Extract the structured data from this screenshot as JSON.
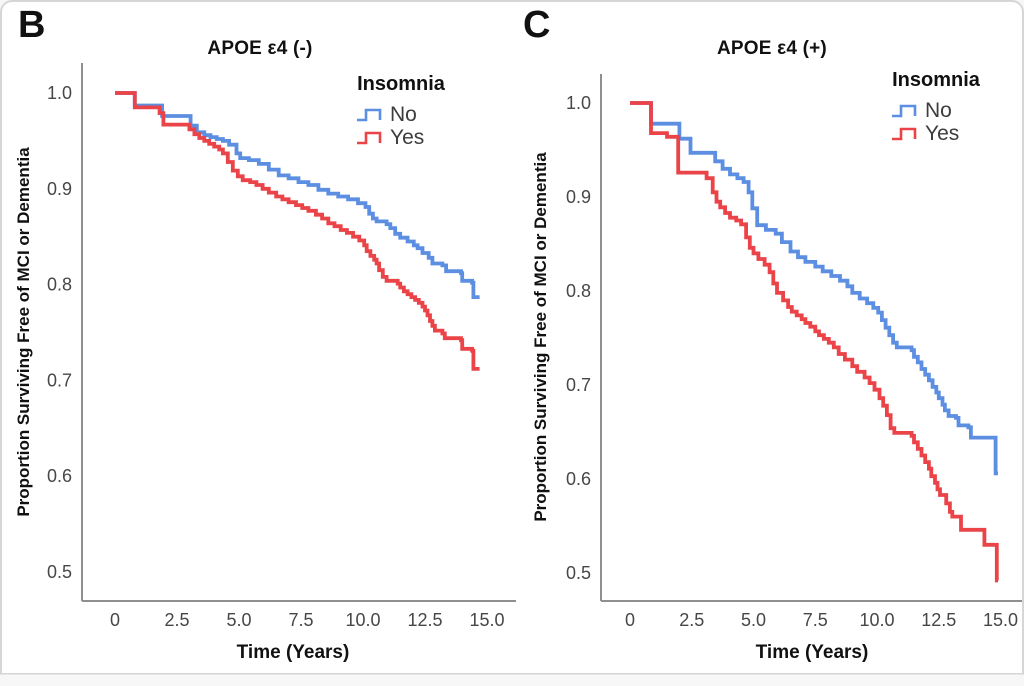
{
  "figure": {
    "bottom_strip_color": "#f7f7f8",
    "card_border_color": "#d6d6d6",
    "axis_color": "#8f8f8f",
    "tick_text_color": "#474747",
    "label_text_color": "#111111"
  },
  "chart_data": [
    {
      "panel_label": "B",
      "type": "line",
      "subtype": "kaplan-meier-step",
      "title": "APOE ε4 (-)",
      "xlabel": "Time (Years)",
      "ylabel": "Proportion Surviving Free of MCI or Dementia",
      "xlim": [
        0,
        15
      ],
      "ylim": [
        0.5,
        1.0
      ],
      "grid": false,
      "xticks": {
        "values": [
          0,
          2.5,
          5,
          7.5,
          10,
          12.5,
          15
        ],
        "labels": [
          "0",
          "2.5",
          "5.0",
          "7.5",
          "10.0",
          "12.5",
          "15.0"
        ]
      },
      "yticks": {
        "values": [
          1.0,
          0.9,
          0.8,
          0.7,
          0.6,
          0.5
        ],
        "labels": [
          "1.0",
          "0.9",
          "0.8",
          "0.7",
          "0.6",
          "0.5"
        ]
      },
      "legend": {
        "title": "Insomnia",
        "position": "top-right"
      },
      "series": [
        {
          "name": "No",
          "color": "#5c8ee2",
          "points": [
            [
              0,
              1.0
            ],
            [
              0.8,
              0.987
            ],
            [
              1.9,
              0.976
            ],
            [
              3.05,
              0.966
            ],
            [
              3.3,
              0.959
            ],
            [
              3.6,
              0.956
            ],
            [
              3.85,
              0.954
            ],
            [
              4.1,
              0.952
            ],
            [
              4.35,
              0.95
            ],
            [
              4.6,
              0.946
            ],
            [
              4.9,
              0.937
            ],
            [
              5.05,
              0.932
            ],
            [
              5.4,
              0.93
            ],
            [
              5.8,
              0.926
            ],
            [
              6.2,
              0.92
            ],
            [
              6.6,
              0.914
            ],
            [
              7.0,
              0.911
            ],
            [
              7.4,
              0.907
            ],
            [
              7.8,
              0.904
            ],
            [
              8.2,
              0.899
            ],
            [
              8.6,
              0.895
            ],
            [
              9.0,
              0.892
            ],
            [
              9.4,
              0.889
            ],
            [
              9.8,
              0.885
            ],
            [
              10.1,
              0.881
            ],
            [
              10.25,
              0.874
            ],
            [
              10.4,
              0.869
            ],
            [
              10.55,
              0.866
            ],
            [
              10.95,
              0.863
            ],
            [
              11.1,
              0.859
            ],
            [
              11.3,
              0.853
            ],
            [
              11.5,
              0.849
            ],
            [
              11.8,
              0.845
            ],
            [
              12.05,
              0.841
            ],
            [
              12.2,
              0.838
            ],
            [
              12.4,
              0.833
            ],
            [
              12.65,
              0.828
            ],
            [
              12.8,
              0.822
            ],
            [
              13.2,
              0.82
            ],
            [
              13.35,
              0.814
            ],
            [
              13.95,
              0.812
            ],
            [
              14.0,
              0.804
            ],
            [
              14.4,
              0.802
            ],
            [
              14.45,
              0.787
            ],
            [
              14.7,
              0.787
            ]
          ]
        },
        {
          "name": "Yes",
          "color": "#ea4348",
          "points": [
            [
              0,
              1.0
            ],
            [
              0.8,
              0.985
            ],
            [
              1.8,
              0.979
            ],
            [
              1.95,
              0.967
            ],
            [
              3.0,
              0.962
            ],
            [
              3.2,
              0.957
            ],
            [
              3.4,
              0.953
            ],
            [
              3.6,
              0.95
            ],
            [
              3.8,
              0.947
            ],
            [
              4.0,
              0.944
            ],
            [
              4.2,
              0.941
            ],
            [
              4.35,
              0.937
            ],
            [
              4.55,
              0.928
            ],
            [
              4.75,
              0.919
            ],
            [
              4.95,
              0.913
            ],
            [
              5.15,
              0.909
            ],
            [
              5.45,
              0.907
            ],
            [
              5.7,
              0.904
            ],
            [
              5.95,
              0.9
            ],
            [
              6.2,
              0.896
            ],
            [
              6.5,
              0.892
            ],
            [
              6.75,
              0.889
            ],
            [
              7.0,
              0.886
            ],
            [
              7.3,
              0.883
            ],
            [
              7.55,
              0.88
            ],
            [
              7.8,
              0.877
            ],
            [
              8.1,
              0.873
            ],
            [
              8.35,
              0.869
            ],
            [
              8.6,
              0.864
            ],
            [
              8.85,
              0.861
            ],
            [
              9.1,
              0.857
            ],
            [
              9.35,
              0.854
            ],
            [
              9.6,
              0.85
            ],
            [
              9.85,
              0.846
            ],
            [
              10.05,
              0.841
            ],
            [
              10.15,
              0.835
            ],
            [
              10.3,
              0.83
            ],
            [
              10.45,
              0.826
            ],
            [
              10.55,
              0.822
            ],
            [
              10.65,
              0.815
            ],
            [
              10.8,
              0.808
            ],
            [
              10.95,
              0.804
            ],
            [
              11.4,
              0.801
            ],
            [
              11.5,
              0.797
            ],
            [
              11.65,
              0.793
            ],
            [
              11.8,
              0.79
            ],
            [
              11.95,
              0.787
            ],
            [
              12.1,
              0.784
            ],
            [
              12.25,
              0.781
            ],
            [
              12.4,
              0.777
            ],
            [
              12.5,
              0.773
            ],
            [
              12.6,
              0.768
            ],
            [
              12.7,
              0.762
            ],
            [
              12.8,
              0.757
            ],
            [
              12.9,
              0.752
            ],
            [
              13.2,
              0.749
            ],
            [
              13.3,
              0.744
            ],
            [
              13.95,
              0.742
            ],
            [
              14.0,
              0.733
            ],
            [
              14.4,
              0.731
            ],
            [
              14.45,
              0.712
            ],
            [
              14.7,
              0.712
            ]
          ]
        }
      ]
    },
    {
      "panel_label": "C",
      "type": "line",
      "subtype": "kaplan-meier-step",
      "title": "APOE ε4 (+)",
      "xlabel": "Time (Years)",
      "ylabel": "Proportion Surviving Free of MCI or Dementia",
      "xlim": [
        0,
        15
      ],
      "ylim": [
        0.5,
        1.0
      ],
      "grid": false,
      "xticks": {
        "values": [
          0,
          2.5,
          5,
          7.5,
          10,
          12.5,
          15
        ],
        "labels": [
          "0",
          "2.5",
          "5.0",
          "7.5",
          "10.0",
          "12.5",
          "15.0"
        ]
      },
      "yticks": {
        "values": [
          1.0,
          0.9,
          0.8,
          0.7,
          0.6,
          0.5
        ],
        "labels": [
          "1.0",
          "0.9",
          "0.8",
          "0.7",
          "0.6",
          "0.5"
        ]
      },
      "legend": {
        "title": "Insomnia",
        "position": "top-right"
      },
      "series": [
        {
          "name": "No",
          "color": "#5c8ee2",
          "points": [
            [
              0,
              1.0
            ],
            [
              0.85,
              0.978
            ],
            [
              2.0,
              0.962
            ],
            [
              2.45,
              0.947
            ],
            [
              3.45,
              0.938
            ],
            [
              3.75,
              0.93
            ],
            [
              4.05,
              0.924
            ],
            [
              4.35,
              0.92
            ],
            [
              4.6,
              0.916
            ],
            [
              4.8,
              0.905
            ],
            [
              4.95,
              0.888
            ],
            [
              5.15,
              0.87
            ],
            [
              5.5,
              0.865
            ],
            [
              5.9,
              0.861
            ],
            [
              6.15,
              0.852
            ],
            [
              6.5,
              0.842
            ],
            [
              6.8,
              0.836
            ],
            [
              7.1,
              0.831
            ],
            [
              7.5,
              0.826
            ],
            [
              7.8,
              0.821
            ],
            [
              8.15,
              0.816
            ],
            [
              8.5,
              0.811
            ],
            [
              8.8,
              0.805
            ],
            [
              9.0,
              0.798
            ],
            [
              9.3,
              0.792
            ],
            [
              9.6,
              0.787
            ],
            [
              9.85,
              0.782
            ],
            [
              10.05,
              0.777
            ],
            [
              10.2,
              0.769
            ],
            [
              10.35,
              0.761
            ],
            [
              10.5,
              0.753
            ],
            [
              10.65,
              0.745
            ],
            [
              10.8,
              0.74
            ],
            [
              11.4,
              0.737
            ],
            [
              11.5,
              0.73
            ],
            [
              11.65,
              0.724
            ],
            [
              11.8,
              0.717
            ],
            [
              11.95,
              0.711
            ],
            [
              12.1,
              0.705
            ],
            [
              12.25,
              0.698
            ],
            [
              12.4,
              0.692
            ],
            [
              12.5,
              0.686
            ],
            [
              12.65,
              0.679
            ],
            [
              12.75,
              0.673
            ],
            [
              12.9,
              0.667
            ],
            [
              13.2,
              0.665
            ],
            [
              13.3,
              0.657
            ],
            [
              13.7,
              0.655
            ],
            [
              13.8,
              0.644
            ],
            [
              14.75,
              0.644
            ],
            [
              14.8,
              0.606
            ],
            [
              14.9,
              0.606
            ]
          ]
        },
        {
          "name": "Yes",
          "color": "#ea4348",
          "points": [
            [
              0,
              1.0
            ],
            [
              0.85,
              0.968
            ],
            [
              1.5,
              0.964
            ],
            [
              1.95,
              0.926
            ],
            [
              3.1,
              0.92
            ],
            [
              3.35,
              0.905
            ],
            [
              3.5,
              0.895
            ],
            [
              3.65,
              0.889
            ],
            [
              3.85,
              0.883
            ],
            [
              4.05,
              0.878
            ],
            [
              4.3,
              0.875
            ],
            [
              4.5,
              0.871
            ],
            [
              4.7,
              0.857
            ],
            [
              4.85,
              0.846
            ],
            [
              5.0,
              0.84
            ],
            [
              5.2,
              0.834
            ],
            [
              5.45,
              0.828
            ],
            [
              5.65,
              0.82
            ],
            [
              5.8,
              0.808
            ],
            [
              5.95,
              0.798
            ],
            [
              6.2,
              0.79
            ],
            [
              6.4,
              0.783
            ],
            [
              6.55,
              0.778
            ],
            [
              6.75,
              0.774
            ],
            [
              6.95,
              0.77
            ],
            [
              7.1,
              0.766
            ],
            [
              7.3,
              0.762
            ],
            [
              7.5,
              0.757
            ],
            [
              7.65,
              0.753
            ],
            [
              7.85,
              0.749
            ],
            [
              8.05,
              0.745
            ],
            [
              8.25,
              0.74
            ],
            [
              8.45,
              0.733
            ],
            [
              8.7,
              0.727
            ],
            [
              9.0,
              0.72
            ],
            [
              9.2,
              0.714
            ],
            [
              9.5,
              0.708
            ],
            [
              9.7,
              0.702
            ],
            [
              9.9,
              0.695
            ],
            [
              10.1,
              0.686
            ],
            [
              10.25,
              0.678
            ],
            [
              10.4,
              0.668
            ],
            [
              10.55,
              0.654
            ],
            [
              10.7,
              0.649
            ],
            [
              11.4,
              0.646
            ],
            [
              11.5,
              0.639
            ],
            [
              11.65,
              0.632
            ],
            [
              11.8,
              0.625
            ],
            [
              11.95,
              0.618
            ],
            [
              12.1,
              0.611
            ],
            [
              12.2,
              0.603
            ],
            [
              12.35,
              0.596
            ],
            [
              12.45,
              0.589
            ],
            [
              12.55,
              0.583
            ],
            [
              12.8,
              0.574
            ],
            [
              12.95,
              0.565
            ],
            [
              13.05,
              0.56
            ],
            [
              13.4,
              0.546
            ],
            [
              14.35,
              0.53
            ],
            [
              14.85,
              0.492
            ],
            [
              14.9,
              0.492
            ]
          ]
        }
      ]
    }
  ]
}
